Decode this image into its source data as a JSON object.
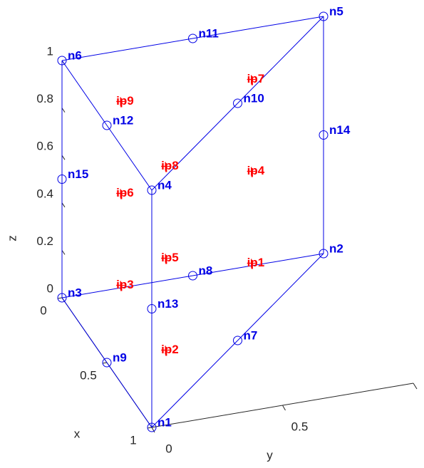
{
  "chart_data": {
    "type": "scatter3d",
    "xlabel": "x",
    "ylabel": "y",
    "zlabel": "z",
    "xlim": [
      0,
      1
    ],
    "ylim": [
      0,
      1
    ],
    "zlim": [
      0,
      1
    ],
    "xticks": [
      0,
      0.5,
      1
    ],
    "yticks": [
      0,
      0.5
    ],
    "zticks": [
      0,
      0.2,
      0.4,
      0.6,
      0.8,
      1
    ],
    "nodes": {
      "color": "#0000e6",
      "labels": [
        "n1",
        "n2",
        "n3",
        "n4",
        "n5",
        "n6",
        "n7",
        "n8",
        "n9",
        "n10",
        "n11",
        "n12",
        "n13",
        "n14",
        "n15"
      ],
      "x": [
        1,
        0,
        0,
        1,
        0,
        0,
        0.5,
        0,
        0.5,
        0.5,
        0,
        0.5,
        1,
        0,
        0
      ],
      "y": [
        0,
        1,
        0,
        0,
        1,
        0,
        0.5,
        0.5,
        0,
        0.5,
        0.5,
        0,
        0,
        1,
        0
      ],
      "z": [
        0,
        0,
        0,
        1,
        1,
        1,
        0,
        0,
        0,
        1,
        1,
        1,
        0.5,
        0.5,
        0.5
      ]
    },
    "points": {
      "color": "#ff0000",
      "labels": [
        "ip1",
        "ip2",
        "ip3",
        "ip4",
        "ip5",
        "ip6",
        "ip7",
        "ip8",
        "ip9"
      ],
      "x": [
        0.1667,
        0.6667,
        0.1667,
        0.1667,
        0.6667,
        0.1667,
        0.1667,
        0.6667,
        0.1667
      ],
      "y": [
        0.6667,
        0.1667,
        0.1667,
        0.6667,
        0.1667,
        0.1667,
        0.6667,
        0.1667,
        0.1667
      ],
      "z": [
        0.1127,
        0.1127,
        0.1127,
        0.5,
        0.5,
        0.5,
        0.8873,
        0.8873,
        0.8873
      ]
    }
  }
}
